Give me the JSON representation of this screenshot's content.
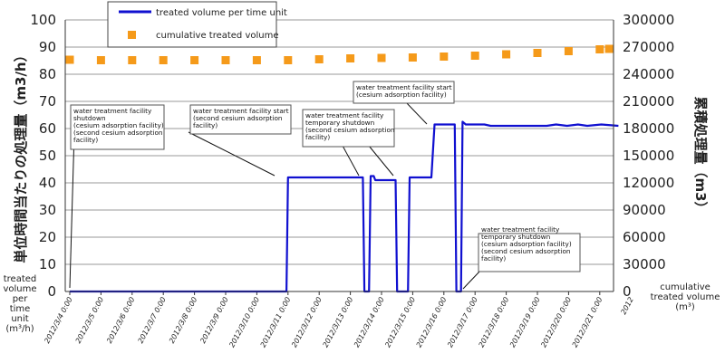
{
  "chart_data": {
    "type": "line",
    "title": "",
    "y_left": {
      "label_side": "単位時間当たりの処理量（m3/h）",
      "label_bottom": [
        "treated",
        "volume",
        "per",
        "time",
        "unit",
        "(m³/h)"
      ],
      "range": [
        0,
        100
      ],
      "ticks": [
        "0",
        "10",
        "20",
        "30",
        "40",
        "50",
        "60",
        "70",
        "80",
        "90",
        "100"
      ]
    },
    "y_right": {
      "label_side": "累積処理量（m3）",
      "label_bottom": [
        "cumulative",
        "treated volume",
        "(m³)"
      ],
      "range": [
        0,
        300000
      ],
      "ticks": [
        "0",
        "30000",
        "60000",
        "90000",
        "120000",
        "150000",
        "180000",
        "210000",
        "240000",
        "270000",
        "300000"
      ]
    },
    "x": {
      "range": [
        0,
        17.6
      ],
      "ticks": [
        "2012/3/4 0:00",
        "2012/3/5 0:00",
        "2012/3/6 0:00",
        "2012/3/7 0:00",
        "2012/3/8 0:00",
        "2012/3/9 0:00",
        "2012/3/10 0:00",
        "2012/3/11 0:00",
        "2012/3/12 0:00",
        "2012/3/13 0:00",
        "2012/3/14 0:00",
        "2012/3/15 0:00",
        "2012/3/16 0:00",
        "2012/3/17 0:00",
        "2012/3/18 0:00",
        "2012/3/19 0:00",
        "2012/3/20 0:00",
        "2012/3/21 0:00"
      ],
      "cut_tick": "2012"
    },
    "legend": {
      "placement": "top-left",
      "items": [
        {
          "label": "treated volume per time unit",
          "color": "#1010d0",
          "marker": "line"
        },
        {
          "label": "cumulative treated volume",
          "color": "#f59a1a",
          "marker": "square"
        }
      ]
    },
    "series": [
      {
        "name": "treated volume per time unit",
        "axis": "left",
        "color": "#1010d0",
        "points": [
          [
            0,
            0
          ],
          [
            6.95,
            0
          ],
          [
            7.0,
            42
          ],
          [
            9.4,
            42
          ],
          [
            9.45,
            0
          ],
          [
            9.6,
            0
          ],
          [
            9.65,
            42.5
          ],
          [
            9.75,
            42.5
          ],
          [
            9.8,
            41
          ],
          [
            10.45,
            41
          ],
          [
            10.5,
            0
          ],
          [
            10.85,
            0
          ],
          [
            10.9,
            42
          ],
          [
            11.6,
            42
          ],
          [
            11.7,
            61.5
          ],
          [
            12.35,
            61.5
          ],
          [
            12.4,
            0
          ],
          [
            12.55,
            0
          ],
          [
            12.6,
            62.5
          ],
          [
            12.7,
            61.5
          ],
          [
            13.3,
            61.5
          ],
          [
            13.5,
            61
          ],
          [
            15.3,
            61
          ],
          [
            15.6,
            61.5
          ],
          [
            15.95,
            61
          ],
          [
            16.3,
            61.5
          ],
          [
            16.6,
            61
          ],
          [
            17.05,
            61.5
          ],
          [
            17.6,
            61
          ]
        ]
      },
      {
        "name": "cumulative treated volume",
        "axis": "right",
        "color": "#f59a1a",
        "x": [
          0,
          1,
          2,
          3,
          4,
          5,
          6,
          7,
          8,
          9,
          10,
          11,
          12,
          13,
          14,
          15,
          16,
          17,
          17.3
        ],
        "values": [
          256000,
          255500,
          255500,
          255500,
          255500,
          255500,
          255500,
          255500,
          256500,
          257500,
          258000,
          258500,
          259500,
          260500,
          262000,
          263500,
          265500,
          267500,
          268000
        ]
      }
    ],
    "annotations": [
      {
        "lines": [
          "water treatment facility",
          "shutdown",
          "(cesium adsorption facility)",
          "(second cesium adsorption",
          "facility)"
        ]
      },
      {
        "lines": [
          "water treatment facility start",
          "(second cesium adsorption",
          "facility)"
        ]
      },
      {
        "lines": [
          "water treatment facility",
          "temporary shutdown",
          "(second cesium adsorption",
          "facility)"
        ]
      },
      {
        "lines": [
          "water treatment facility start",
          "(cesium adsorption facility)"
        ]
      },
      {
        "lines": [
          "water treatment facility",
          "temporary shutdown",
          "(cesium adsorption facility)",
          "(second cesium adsorption",
          "facility)"
        ]
      }
    ]
  }
}
